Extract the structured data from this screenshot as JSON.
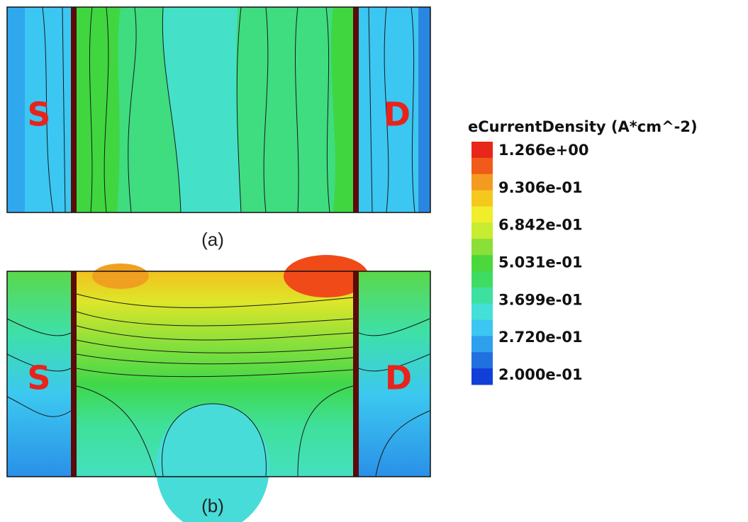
{
  "panels": [
    {
      "caption": "(a)",
      "source_label": "S",
      "drain_label": "D"
    },
    {
      "caption": "(b)",
      "source_label": "S",
      "drain_label": "D"
    }
  ],
  "colorbar": {
    "title": "eCurrentDensity (A*cm^-2)",
    "labels": [
      "1.266e+00",
      "9.306e-01",
      "6.842e-01",
      "5.031e-01",
      "3.699e-01",
      "2.720e-01",
      "2.000e-01"
    ]
  }
}
